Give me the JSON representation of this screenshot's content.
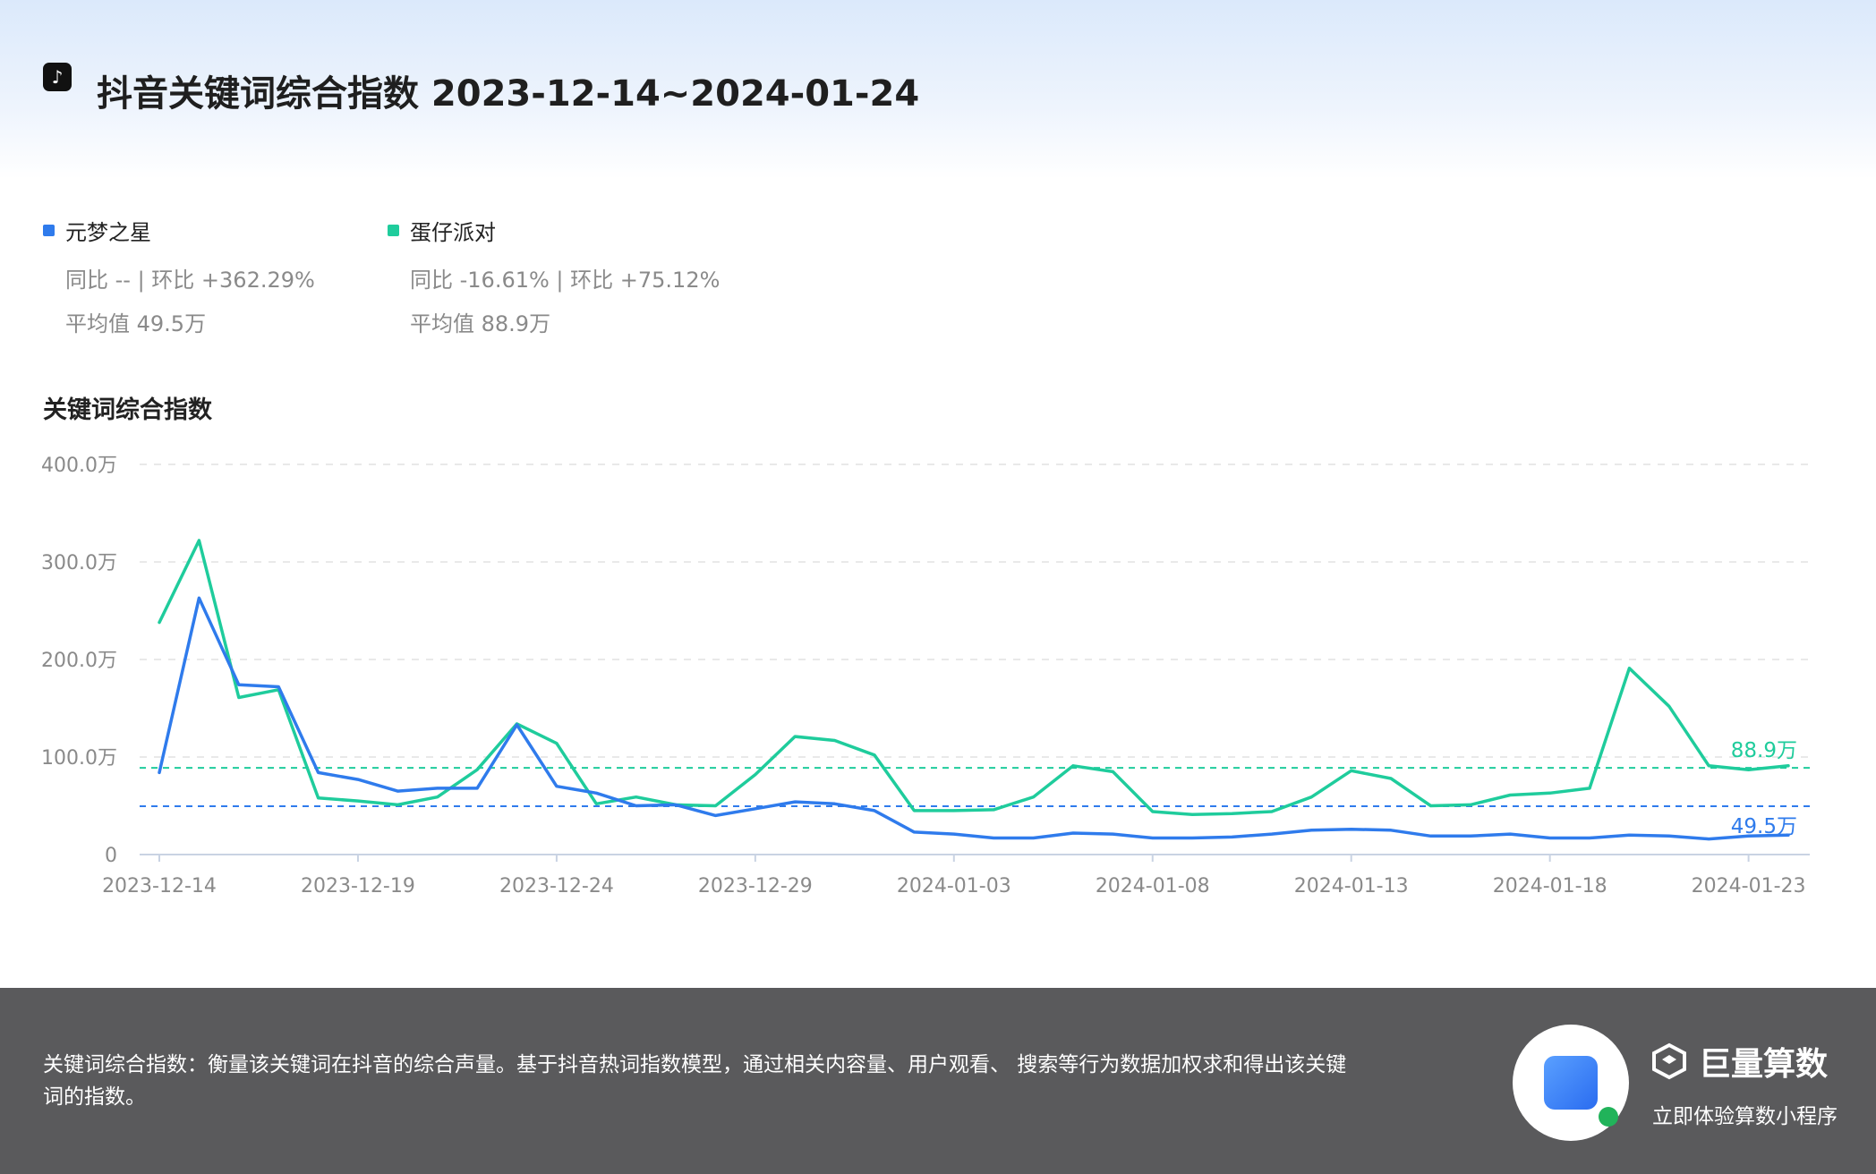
{
  "header": {
    "logo_icon": "douyin-logo-icon",
    "title": "抖音关键词综合指数 2023-12-14~2024-01-24"
  },
  "legend": [
    {
      "name": "元梦之星",
      "color": "#2f7bec",
      "yoy_line": "同比 -- | 环比 +362.29%",
      "avg_line": "平均值 49.5万"
    },
    {
      "name": "蛋仔派对",
      "color": "#1fcc9c",
      "yoy_line": "同比 -16.61% | 环比 +75.12%",
      "avg_line": "平均值 88.9万"
    }
  ],
  "chart_title": "关键词综合指数",
  "chart_data": {
    "type": "line",
    "x": [
      "2023-12-14",
      "2023-12-15",
      "2023-12-16",
      "2023-12-17",
      "2023-12-18",
      "2023-12-19",
      "2023-12-20",
      "2023-12-21",
      "2023-12-22",
      "2023-12-23",
      "2023-12-24",
      "2023-12-25",
      "2023-12-26",
      "2023-12-27",
      "2023-12-28",
      "2023-12-29",
      "2023-12-30",
      "2023-12-31",
      "2024-01-01",
      "2024-01-02",
      "2024-01-03",
      "2024-01-04",
      "2024-01-05",
      "2024-01-06",
      "2024-01-07",
      "2024-01-08",
      "2024-01-09",
      "2024-01-10",
      "2024-01-11",
      "2024-01-12",
      "2024-01-13",
      "2024-01-14",
      "2024-01-15",
      "2024-01-16",
      "2024-01-17",
      "2024-01-18",
      "2024-01-19",
      "2024-01-20",
      "2024-01-21",
      "2024-01-22",
      "2024-01-23",
      "2024-01-24"
    ],
    "x_tick_labels": [
      "2023-12-14",
      "2023-12-19",
      "2023-12-24",
      "2023-12-29",
      "2024-01-03",
      "2024-01-08",
      "2024-01-13",
      "2024-01-18",
      "2024-01-23"
    ],
    "y_ticks": [
      0,
      100,
      200,
      300,
      400
    ],
    "y_tick_labels": [
      "0",
      "100.0万",
      "200.0万",
      "300.0万",
      "400.0万"
    ],
    "ylim": [
      0,
      400
    ],
    "unit": "万",
    "grid": true,
    "series": [
      {
        "name": "元梦之星",
        "color": "#2f7bec",
        "values": [
          84,
          263,
          174,
          172,
          84,
          77,
          65,
          68,
          68,
          133,
          70,
          63,
          50,
          51,
          40,
          47,
          54,
          52,
          45,
          23,
          21,
          17,
          17,
          22,
          21,
          17,
          17,
          18,
          21,
          25,
          26,
          25,
          19,
          19,
          21,
          17,
          17,
          20,
          19,
          16,
          19,
          20
        ],
        "average": 49.5,
        "average_label": "49.5万"
      },
      {
        "name": "蛋仔派对",
        "color": "#1fcc9c",
        "values": [
          238,
          322,
          161,
          169,
          58,
          55,
          51,
          59,
          87,
          134,
          114,
          52,
          59,
          51,
          50,
          82,
          121,
          117,
          102,
          45,
          45,
          46,
          59,
          91,
          85,
          44,
          41,
          42,
          44,
          59,
          86,
          78,
          50,
          51,
          61,
          63,
          68,
          191,
          152,
          91,
          87,
          91
        ],
        "average": 88.9,
        "average_label": "88.9万"
      }
    ]
  },
  "footer": {
    "description": "关键词综合指数：衡量该关键词在抖音的综合声量。基于抖音热词指数模型，通过相关内容量、用户观看、 搜索等行为数据加权求和得出该关键词的指数。",
    "qr_icon": "mini-program-qr-icon",
    "brand_icon": "juliang-logo-icon",
    "brand_name": "巨量算数",
    "brand_subtitle": "立即体验算数小程序"
  }
}
